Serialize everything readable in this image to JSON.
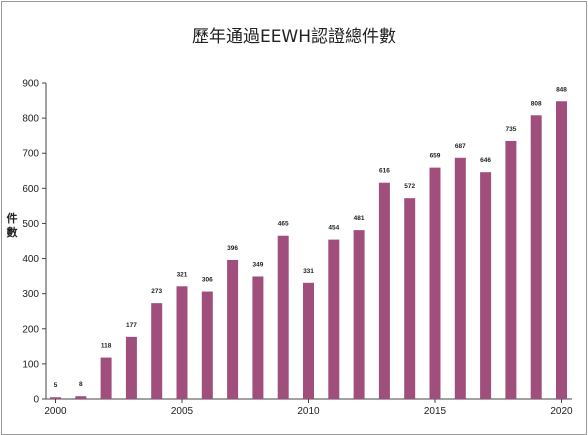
{
  "chart_data": {
    "type": "bar",
    "title": "歷年通過EEWH認證總件數",
    "ylabel": "件數",
    "xlabel": "",
    "ylim": [
      0,
      900
    ],
    "yticks": [
      0,
      100,
      200,
      300,
      400,
      500,
      600,
      700,
      800,
      900
    ],
    "xtick_labels": [
      "2000",
      "2005",
      "2010",
      "2015",
      "2020"
    ],
    "categories": [
      "2000",
      "2001",
      "2002",
      "2003",
      "2004",
      "2005",
      "2006",
      "2007",
      "2008",
      "2009",
      "2010",
      "2011",
      "2012",
      "2013",
      "2014",
      "2015",
      "2016",
      "2017",
      "2018",
      "2019",
      "2020"
    ],
    "values": [
      5,
      8,
      118,
      177,
      273,
      321,
      306,
      396,
      349,
      465,
      331,
      454,
      481,
      616,
      572,
      659,
      687,
      646,
      735,
      808,
      848
    ],
    "bar_color": "#a04f7c",
    "grid": false,
    "legend": "none"
  }
}
